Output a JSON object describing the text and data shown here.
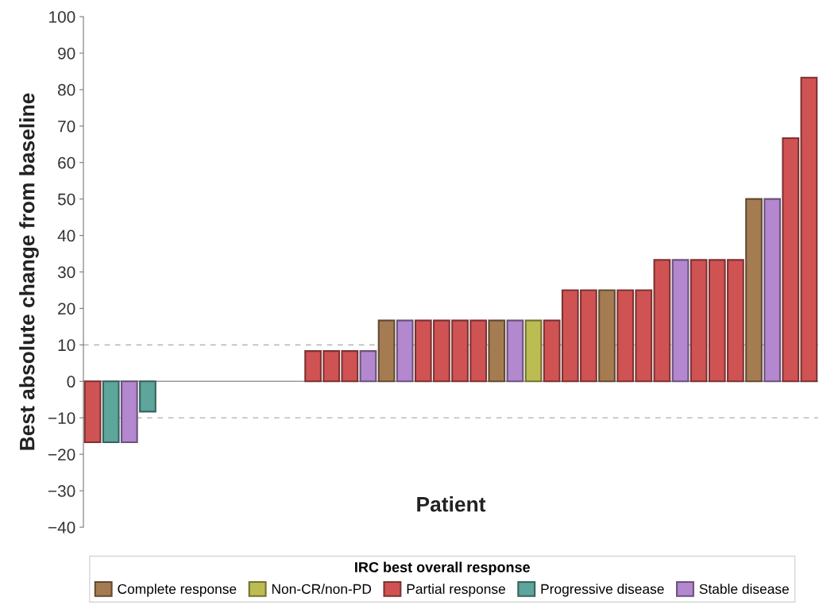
{
  "chart_data": {
    "type": "bar",
    "xlabel": "Patient",
    "ylabel": "Best absolute change from baseline",
    "legend_title": "IRC best overall response",
    "categories": [
      null,
      null,
      null,
      null,
      null,
      null,
      null,
      null,
      null,
      null,
      null,
      null,
      null,
      null,
      null,
      null,
      null,
      null,
      null,
      null,
      null,
      null,
      null,
      null,
      null,
      null,
      null,
      null,
      null,
      null,
      null,
      null,
      null,
      null,
      null,
      null,
      null,
      null,
      null,
      null
    ],
    "stacked": true,
    "series": [
      {
        "name": "Complete response",
        "color": "#a57c52",
        "values": [
          null,
          null,
          null,
          null,
          null,
          null,
          null,
          null,
          null,
          null,
          null,
          null,
          null,
          null,
          null,
          null,
          16.7,
          null,
          null,
          null,
          null,
          null,
          16.7,
          null,
          null,
          null,
          null,
          null,
          25,
          null,
          null,
          null,
          null,
          null,
          null,
          null,
          50,
          null,
          null,
          null
        ]
      },
      {
        "name": "Non-CR/non-PD",
        "color": "#bcbc52",
        "values": [
          null,
          null,
          null,
          null,
          null,
          null,
          null,
          null,
          null,
          null,
          null,
          null,
          null,
          null,
          null,
          null,
          null,
          null,
          null,
          null,
          null,
          null,
          null,
          null,
          16.7,
          null,
          null,
          null,
          null,
          null,
          null,
          null,
          null,
          null,
          null,
          null,
          null,
          null,
          null,
          null
        ]
      },
      {
        "name": "Partial response",
        "color": "#d05353",
        "values": [
          -16.7,
          null,
          null,
          null,
          null,
          null,
          null,
          null,
          null,
          null,
          null,
          null,
          8.3,
          8.3,
          8.3,
          null,
          null,
          null,
          16.7,
          16.7,
          16.7,
          16.7,
          null,
          null,
          null,
          16.7,
          25,
          25,
          null,
          25,
          25,
          33.3,
          null,
          33.3,
          33.3,
          33.3,
          null,
          null,
          66.7,
          83.3
        ]
      },
      {
        "name": "Progressive disease",
        "color": "#5ea59b",
        "values": [
          null,
          -16.7,
          null,
          -8.3,
          null,
          null,
          null,
          null,
          null,
          null,
          null,
          null,
          null,
          null,
          null,
          null,
          null,
          null,
          null,
          null,
          null,
          null,
          null,
          null,
          null,
          null,
          null,
          null,
          null,
          null,
          null,
          null,
          null,
          null,
          null,
          null,
          null,
          null,
          null,
          null
        ]
      },
      {
        "name": "Stable disease",
        "color": "#b388cf",
        "values": [
          null,
          null,
          -16.7,
          null,
          null,
          null,
          null,
          null,
          null,
          null,
          null,
          null,
          null,
          null,
          null,
          8.3,
          null,
          16.7,
          null,
          null,
          null,
          null,
          null,
          16.7,
          null,
          null,
          null,
          null,
          null,
          null,
          null,
          null,
          33.3,
          null,
          null,
          null,
          null,
          50,
          null,
          null
        ]
      }
    ],
    "ylim": [
      -40,
      100
    ],
    "yticks": [
      100,
      90,
      80,
      70,
      60,
      50,
      40,
      30,
      20,
      10,
      0,
      {
        "value": -10,
        "label": "−10"
      },
      {
        "value": -20,
        "label": "−20"
      },
      {
        "value": -30,
        "label": "−30"
      },
      {
        "value": -40,
        "label": "−40"
      }
    ],
    "tick_labels": "y",
    "grid": false,
    "legend": "bottom",
    "ref_lines": [
      {
        "axis": "y",
        "value": 0,
        "color": "#999999",
        "line_style": "solid"
      },
      {
        "axis": "y",
        "value": 10,
        "color": "#bbbbbb",
        "line_style": "dashed"
      },
      {
        "axis": "y",
        "value": -10,
        "color": "#bbbbbb",
        "line_style": "dashed"
      }
    ]
  }
}
